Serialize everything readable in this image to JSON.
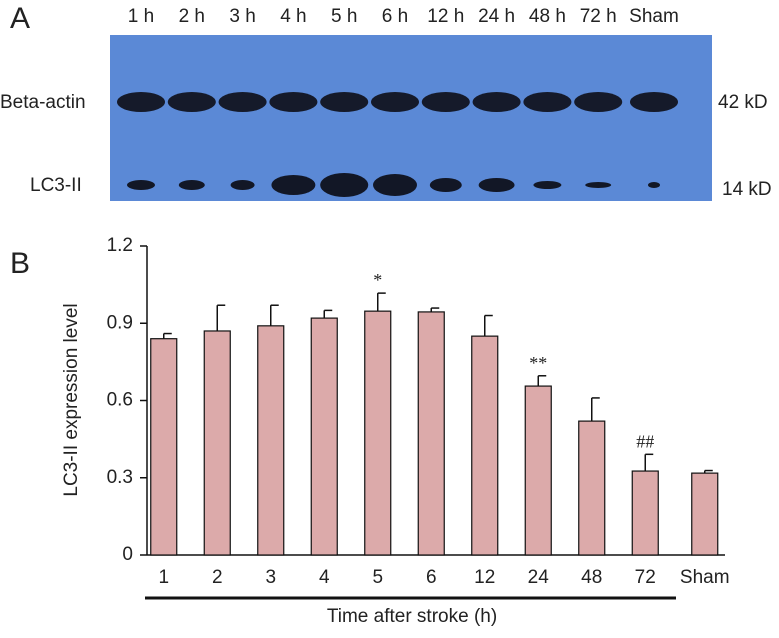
{
  "blot": {
    "panel_label": "A",
    "lanes": [
      "1 h",
      "2 h",
      "3 h",
      "4 h",
      "5 h",
      "6 h",
      "12 h",
      "24 h",
      "48 h",
      "72 h",
      "Sham"
    ],
    "bands": [
      {
        "name": "Beta-actin",
        "size": "42 kD"
      },
      {
        "name": "LC3-II",
        "size": "14 kD"
      }
    ]
  },
  "chart_data": {
    "type": "bar",
    "panel_label": "B",
    "x_label": "Time after stroke (h)",
    "y_label": "LC3-II expression level",
    "categories": [
      "1",
      "2",
      "3",
      "4",
      "5",
      "6",
      "12",
      "24",
      "48",
      "72",
      "Sham"
    ],
    "series": [
      {
        "color": "#dcaaaa",
        "values": [
          0.84,
          0.87,
          0.89,
          0.92,
          0.947,
          0.944,
          0.85,
          0.656,
          0.52,
          0.326,
          0.318
        ],
        "errors": [
          0.02,
          0.1,
          0.08,
          0.03,
          0.07,
          0.015,
          0.08,
          0.04,
          0.09,
          0.065,
          0.01
        ]
      }
    ],
    "annotations": [
      null,
      null,
      null,
      null,
      "*",
      null,
      null,
      "**",
      null,
      "##",
      null
    ],
    "ylim": [
      0,
      1.2
    ],
    "yticks": [
      0,
      0.3,
      0.6,
      0.9,
      1.2
    ]
  }
}
